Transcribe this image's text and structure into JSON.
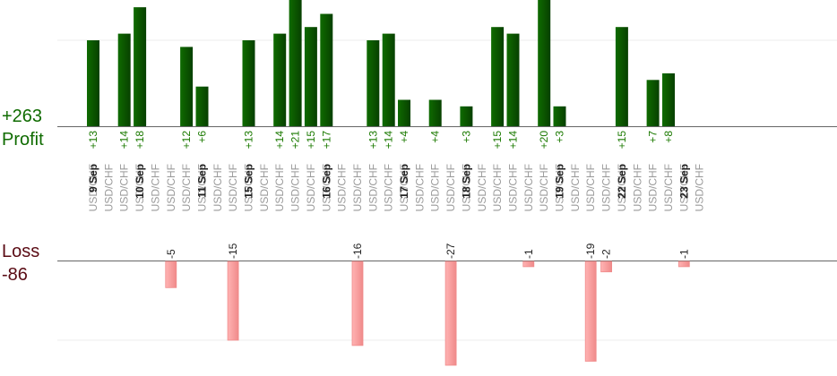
{
  "summary": {
    "profit_value": "+263",
    "profit_label": "Profit",
    "loss_label": "Loss",
    "loss_value": "-86"
  },
  "colors": {
    "profit_bar": "#0f6b00",
    "profit_bar_dark": "#074000",
    "loss_bar": "#ffb3b3",
    "loss_bar_edge": "#f08a8a"
  },
  "chart_data": {
    "type": "bar",
    "ylim_profit": [
      0,
      15
    ],
    "ylim_loss": [
      0,
      15
    ],
    "date_labels": [
      "9 Sep",
      "10 Sep",
      "11 Sep",
      "15 Sep",
      "16 Sep",
      "17 Sep",
      "18 Sep",
      "19 Sep",
      "22 Sep",
      "23 Sep"
    ],
    "trades": [
      {
        "pair": "USD/CHF",
        "value": 13
      },
      {
        "pair": "USD/CHF",
        "date": "9 Sep"
      },
      {
        "pair": "USD/CHF",
        "value": 14
      },
      {
        "pair": "USD/CHF",
        "value": 18
      },
      {
        "pair": "USD/CHF",
        "date": "10 Sep"
      },
      {
        "pair": "USD/CHF",
        "value": -5
      },
      {
        "pair": "USD/CHF",
        "value": 12
      },
      {
        "pair": "USD/CHF",
        "value": 6
      },
      {
        "pair": "USD/CHF",
        "date": "11 Sep"
      },
      {
        "pair": "USD/CHF",
        "value": -15
      },
      {
        "pair": "USD/CHF",
        "value": 13
      },
      {
        "pair": "USD/CHF",
        "date": "15 Sep"
      },
      {
        "pair": "USD/CHF",
        "value": 14
      },
      {
        "pair": "USD/CHF",
        "value": 21
      },
      {
        "pair": "USD/CHF",
        "value": 15
      },
      {
        "pair": "USD/CHF",
        "value": 17
      },
      {
        "pair": "USD/CHF",
        "date": "16 Sep"
      },
      {
        "pair": "USD/CHF",
        "value": -16
      },
      {
        "pair": "USD/CHF",
        "value": 13
      },
      {
        "pair": "USD/CHF",
        "value": 14
      },
      {
        "pair": "USD/CHF",
        "value": 4
      },
      {
        "pair": "USD/CHF",
        "date": "17 Sep"
      },
      {
        "pair": "USD/CHF",
        "value": 4
      },
      {
        "pair": "USD/CHF",
        "value": -27
      },
      {
        "pair": "USD/CHF",
        "value": 3
      },
      {
        "pair": "USD/CHF",
        "date": "18 Sep"
      },
      {
        "pair": "USD/CHF",
        "value": 15
      },
      {
        "pair": "USD/CHF",
        "value": 14
      },
      {
        "pair": "USD/CHF",
        "value": -1
      },
      {
        "pair": "USD/CHF",
        "value": 20
      },
      {
        "pair": "USD/CHF",
        "value": 3
      },
      {
        "pair": "USD/CHF",
        "date": "19 Sep"
      },
      {
        "pair": "USD/CHF",
        "value": -19
      },
      {
        "pair": "USD/CHF",
        "value": -2
      },
      {
        "pair": "USD/CHF",
        "value": 15
      },
      {
        "pair": "USD/CHF",
        "date": "22 Sep"
      },
      {
        "pair": "USD/CHF",
        "value": 7
      },
      {
        "pair": "USD/CHF",
        "value": 8
      },
      {
        "pair": "USD/CHF",
        "value": -1
      },
      {
        "pair": "USD/CHF",
        "date": "23 Sep"
      }
    ]
  }
}
